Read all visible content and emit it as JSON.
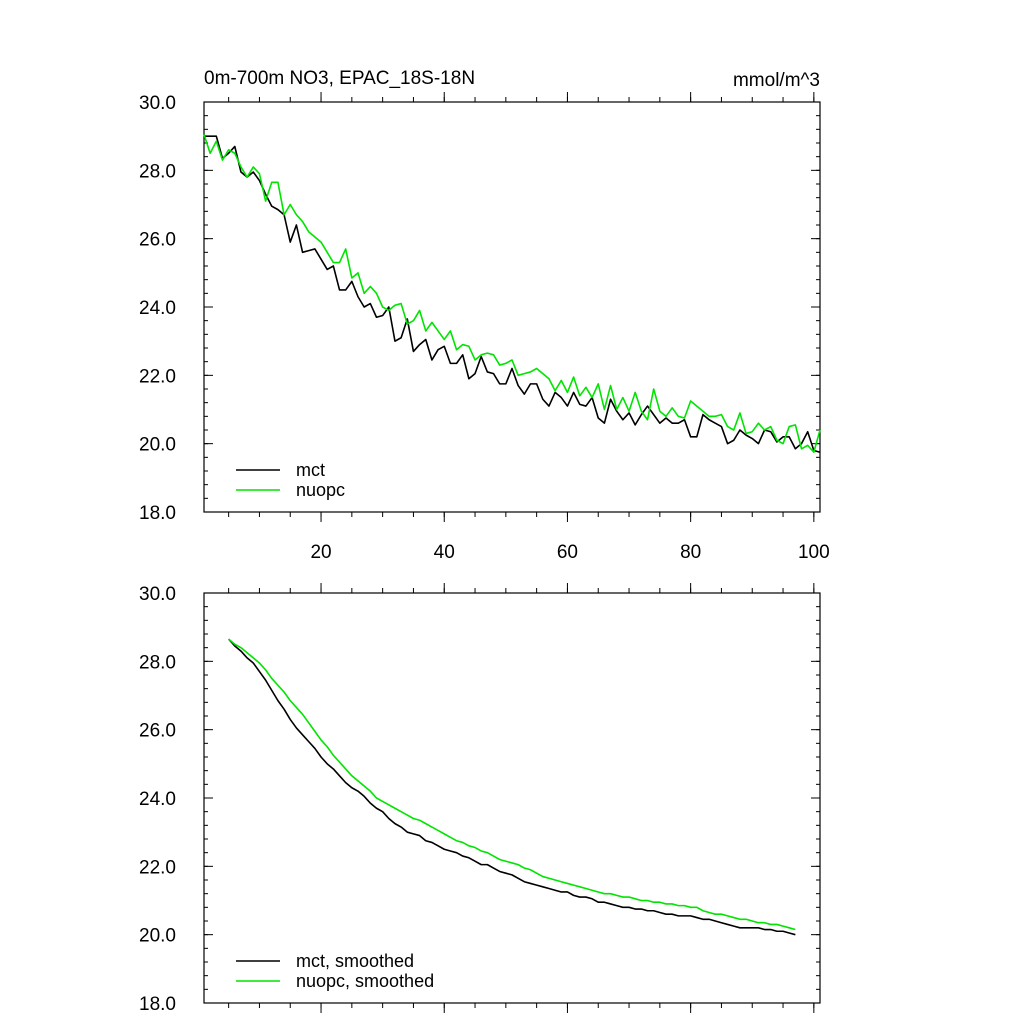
{
  "header": {
    "title": "0m-700m NO3, EPAC_18S-18N",
    "units": "mmol/m^3"
  },
  "colors": {
    "mct": "#000000",
    "nuopc": "#00e400"
  },
  "chart_data": [
    {
      "type": "line",
      "xlim": [
        1,
        101
      ],
      "ylim": [
        18,
        30
      ],
      "y_ticks": [
        "18.0",
        "20.0",
        "22.0",
        "24.0",
        "26.0",
        "28.0",
        "30.0"
      ],
      "x_ticks": [
        "20",
        "40",
        "60",
        "80",
        "100"
      ],
      "x_ticks_labeled": true,
      "legend_position": "bottom-left",
      "x": [
        1,
        2,
        3,
        4,
        5,
        6,
        7,
        8,
        9,
        10,
        11,
        12,
        13,
        14,
        15,
        16,
        17,
        18,
        19,
        20,
        21,
        22,
        23,
        24,
        25,
        26,
        27,
        28,
        29,
        30,
        31,
        32,
        33,
        34,
        35,
        36,
        37,
        38,
        39,
        40,
        41,
        42,
        43,
        44,
        45,
        46,
        47,
        48,
        49,
        50,
        51,
        52,
        53,
        54,
        55,
        56,
        57,
        58,
        59,
        60,
        61,
        62,
        63,
        64,
        65,
        66,
        67,
        68,
        69,
        70,
        71,
        72,
        73,
        74,
        75,
        76,
        77,
        78,
        79,
        80,
        81,
        82,
        83,
        84,
        85,
        86,
        87,
        88,
        89,
        90,
        91,
        92,
        93,
        94,
        95,
        96,
        97,
        98,
        99,
        100,
        101
      ],
      "series": [
        {
          "name": "mct",
          "legend_label": "mct",
          "values": [
            29.0,
            29.0,
            29.0,
            28.35,
            28.5,
            28.7,
            27.95,
            27.8,
            27.95,
            27.7,
            27.3,
            26.95,
            26.85,
            26.7,
            25.9,
            26.4,
            25.6,
            25.65,
            25.7,
            25.4,
            25.1,
            25.2,
            24.5,
            24.5,
            24.75,
            24.3,
            24.0,
            24.1,
            23.7,
            23.75,
            24.0,
            23.0,
            23.1,
            23.65,
            22.7,
            22.9,
            23.05,
            22.45,
            22.75,
            22.85,
            22.35,
            22.35,
            22.6,
            21.9,
            22.05,
            22.55,
            22.1,
            22.05,
            21.75,
            21.75,
            22.2,
            21.7,
            21.45,
            21.75,
            21.75,
            21.3,
            21.1,
            21.5,
            21.35,
            21.1,
            21.5,
            21.15,
            21.1,
            21.35,
            20.75,
            20.6,
            21.3,
            20.95,
            20.7,
            20.9,
            20.55,
            20.85,
            21.1,
            20.85,
            20.6,
            20.75,
            20.6,
            20.6,
            20.7,
            20.2,
            20.2,
            20.85,
            20.7,
            20.6,
            20.5,
            20.0,
            20.1,
            20.4,
            20.25,
            20.15,
            20.0,
            20.4,
            20.35,
            20.05,
            20.2,
            20.2,
            19.85,
            20.0,
            20.35,
            19.8,
            19.75
          ]
        },
        {
          "name": "nuopc",
          "legend_label": "nuopc",
          "values": [
            29.05,
            28.5,
            28.85,
            28.3,
            28.6,
            28.5,
            28.1,
            27.8,
            28.1,
            27.9,
            27.1,
            27.65,
            27.65,
            26.7,
            27.0,
            26.7,
            26.5,
            26.2,
            26.05,
            25.9,
            25.6,
            25.3,
            25.3,
            25.7,
            24.85,
            25.0,
            24.4,
            24.6,
            24.4,
            24.0,
            23.9,
            24.05,
            24.1,
            23.5,
            23.6,
            23.9,
            23.3,
            23.55,
            23.3,
            23.05,
            23.3,
            22.75,
            22.9,
            22.85,
            22.45,
            22.6,
            22.65,
            22.6,
            22.3,
            22.35,
            22.45,
            22.0,
            22.05,
            22.1,
            22.2,
            22.05,
            21.9,
            21.55,
            21.85,
            21.5,
            21.95,
            21.4,
            21.65,
            21.35,
            21.75,
            21.0,
            21.7,
            21.0,
            21.35,
            20.95,
            21.5,
            20.95,
            20.7,
            21.6,
            20.95,
            20.8,
            21.05,
            20.8,
            20.75,
            21.25,
            21.1,
            20.95,
            20.8,
            20.8,
            20.85,
            20.5,
            20.4,
            20.9,
            20.3,
            20.35,
            20.6,
            20.4,
            20.5,
            20.1,
            20.0,
            20.5,
            20.55,
            19.85,
            19.95,
            19.75,
            20.4
          ]
        }
      ]
    },
    {
      "type": "line",
      "xlim": [
        1,
        101
      ],
      "ylim": [
        18,
        30
      ],
      "y_ticks": [
        "18.0",
        "20.0",
        "22.0",
        "24.0",
        "26.0",
        "28.0",
        "30.0"
      ],
      "x_ticks": [
        "20",
        "40",
        "60",
        "80",
        "100"
      ],
      "x_ticks_labeled": false,
      "legend_position": "bottom-left",
      "x": [
        5,
        6,
        7,
        8,
        9,
        10,
        11,
        12,
        13,
        14,
        15,
        16,
        17,
        18,
        19,
        20,
        21,
        22,
        23,
        24,
        25,
        26,
        27,
        28,
        29,
        30,
        31,
        32,
        33,
        34,
        35,
        36,
        37,
        38,
        39,
        40,
        41,
        42,
        43,
        44,
        45,
        46,
        47,
        48,
        49,
        50,
        51,
        52,
        53,
        54,
        55,
        56,
        57,
        58,
        59,
        60,
        61,
        62,
        63,
        64,
        65,
        66,
        67,
        68,
        69,
        70,
        71,
        72,
        73,
        74,
        75,
        76,
        77,
        78,
        79,
        80,
        81,
        82,
        83,
        84,
        85,
        86,
        87,
        88,
        89,
        90,
        91,
        92,
        93,
        94,
        95,
        96,
        97
      ],
      "series": [
        {
          "name": "mct, smoothed",
          "legend_label": "mct, smoothed",
          "values": [
            28.65,
            28.45,
            28.3,
            28.1,
            27.95,
            27.7,
            27.45,
            27.15,
            26.85,
            26.6,
            26.3,
            26.05,
            25.85,
            25.65,
            25.45,
            25.2,
            25.0,
            24.85,
            24.65,
            24.45,
            24.3,
            24.2,
            24.05,
            23.85,
            23.7,
            23.6,
            23.4,
            23.25,
            23.15,
            23.0,
            22.95,
            22.9,
            22.75,
            22.7,
            22.6,
            22.5,
            22.45,
            22.4,
            22.3,
            22.25,
            22.15,
            22.05,
            22.05,
            21.95,
            21.85,
            21.8,
            21.75,
            21.65,
            21.55,
            21.5,
            21.45,
            21.4,
            21.35,
            21.3,
            21.25,
            21.25,
            21.15,
            21.1,
            21.1,
            21.05,
            20.95,
            20.95,
            20.9,
            20.85,
            20.8,
            20.8,
            20.75,
            20.75,
            20.7,
            20.7,
            20.65,
            20.6,
            20.6,
            20.55,
            20.55,
            20.55,
            20.5,
            20.45,
            20.45,
            20.4,
            20.35,
            20.3,
            20.25,
            20.2,
            20.2,
            20.2,
            20.2,
            20.15,
            20.15,
            20.1,
            20.1,
            20.05,
            20.0
          ]
        },
        {
          "name": "nuopc, smoothed",
          "legend_label": "nuopc, smoothed",
          "values": [
            28.65,
            28.5,
            28.4,
            28.25,
            28.1,
            27.95,
            27.75,
            27.5,
            27.3,
            27.1,
            26.85,
            26.65,
            26.45,
            26.2,
            25.95,
            25.7,
            25.5,
            25.25,
            25.05,
            24.85,
            24.65,
            24.5,
            24.35,
            24.2,
            24.0,
            23.9,
            23.8,
            23.7,
            23.6,
            23.5,
            23.4,
            23.35,
            23.25,
            23.15,
            23.05,
            22.95,
            22.85,
            22.75,
            22.7,
            22.6,
            22.55,
            22.45,
            22.4,
            22.3,
            22.2,
            22.15,
            22.1,
            22.05,
            21.95,
            21.9,
            21.8,
            21.7,
            21.65,
            21.6,
            21.55,
            21.5,
            21.45,
            21.4,
            21.35,
            21.3,
            21.25,
            21.2,
            21.2,
            21.15,
            21.1,
            21.1,
            21.05,
            21.0,
            21.0,
            20.95,
            20.95,
            20.9,
            20.9,
            20.85,
            20.85,
            20.8,
            20.8,
            20.7,
            20.65,
            20.6,
            20.6,
            20.55,
            20.5,
            20.45,
            20.45,
            20.4,
            20.35,
            20.35,
            20.3,
            20.3,
            20.25,
            20.2,
            20.15
          ]
        }
      ]
    }
  ]
}
